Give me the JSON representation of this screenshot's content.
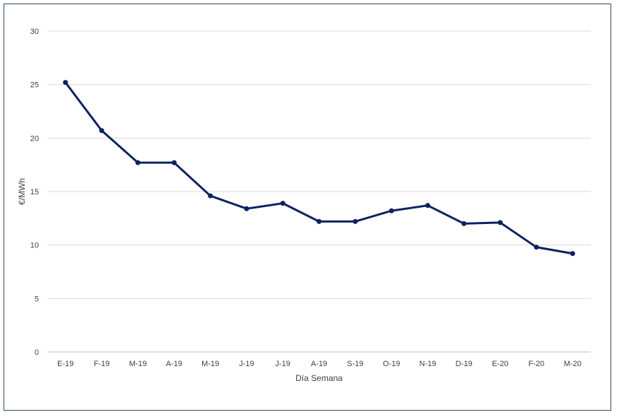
{
  "chart_data": {
    "type": "line",
    "title": "",
    "xlabel": "Día Semana",
    "ylabel": "€/MWh",
    "ylim": [
      0,
      30
    ],
    "yticks": [
      0,
      5,
      10,
      15,
      20,
      25,
      30
    ],
    "grid": true,
    "categories": [
      "E-19",
      "F-19",
      "M-19",
      "A-19",
      "M-19",
      "J-19",
      "J-19",
      "A-19",
      "S-19",
      "O-19",
      "N-19",
      "D-19",
      "E-20",
      "F-20",
      "M-20"
    ],
    "series": [
      {
        "values": [
          25.2,
          20.7,
          17.7,
          17.7,
          14.6,
          13.4,
          13.9,
          12.2,
          12.2,
          13.2,
          13.7,
          12.0,
          12.1,
          9.8,
          9.2
        ],
        "color": "#0c2260"
      }
    ],
    "colors": {
      "line": "#0c2260",
      "grid": "#d9d9d9",
      "border": "#2d4a66"
    }
  }
}
